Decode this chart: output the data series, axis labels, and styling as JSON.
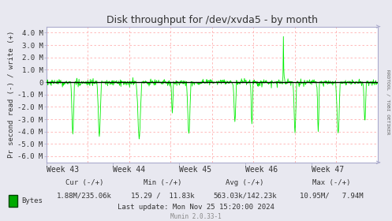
{
  "title": "Disk throughput for /dev/xvda5 - by month",
  "ylabel": "Pr second read (-) / write (+)",
  "xlabel_ticks": [
    "Week 43",
    "Week 44",
    "Week 45",
    "Week 46",
    "Week 47"
  ],
  "ylim": [
    -6500000,
    4500000
  ],
  "yticks": [
    -6000000,
    -5000000,
    -4000000,
    -3000000,
    -2000000,
    -1000000,
    0,
    1000000,
    2000000,
    3000000,
    4000000
  ],
  "ytick_labels": [
    "-6.0 M",
    "-5.0 M",
    "-4.0 M",
    "-3.0 M",
    "-2.0 M",
    "-1.0 M",
    "0",
    "1.0 M",
    "2.0 M",
    "3.0 M",
    "4.0 M"
  ],
  "bg_color": "#e8e8f0",
  "plot_bg_color": "#ffffff",
  "grid_color": "#ffb0b0",
  "line_color": "#00ee00",
  "zero_line_color": "#000000",
  "border_color": "#aaaacc",
  "title_color": "#333333",
  "legend_label": "Bytes",
  "legend_color": "#00aa00",
  "cur_text": "Cur (-/+)",
  "cur_val": "1.88M/235.06k",
  "min_text": "Min (-/+)",
  "min_val": "15.29 /  11.83k",
  "avg_text": "Avg (-/+)",
  "avg_val": "563.03k/142.23k",
  "max_text": "Max (-/+)",
  "max_val": "10.95M/   7.94M",
  "last_update": "Last update: Mon Nov 25 15:20:00 2024",
  "munin_version": "Munin 2.0.33-1",
  "rrdtool_label": "RRDTOOL / TOBI OETIKER",
  "n_points": 800,
  "seed": 42
}
